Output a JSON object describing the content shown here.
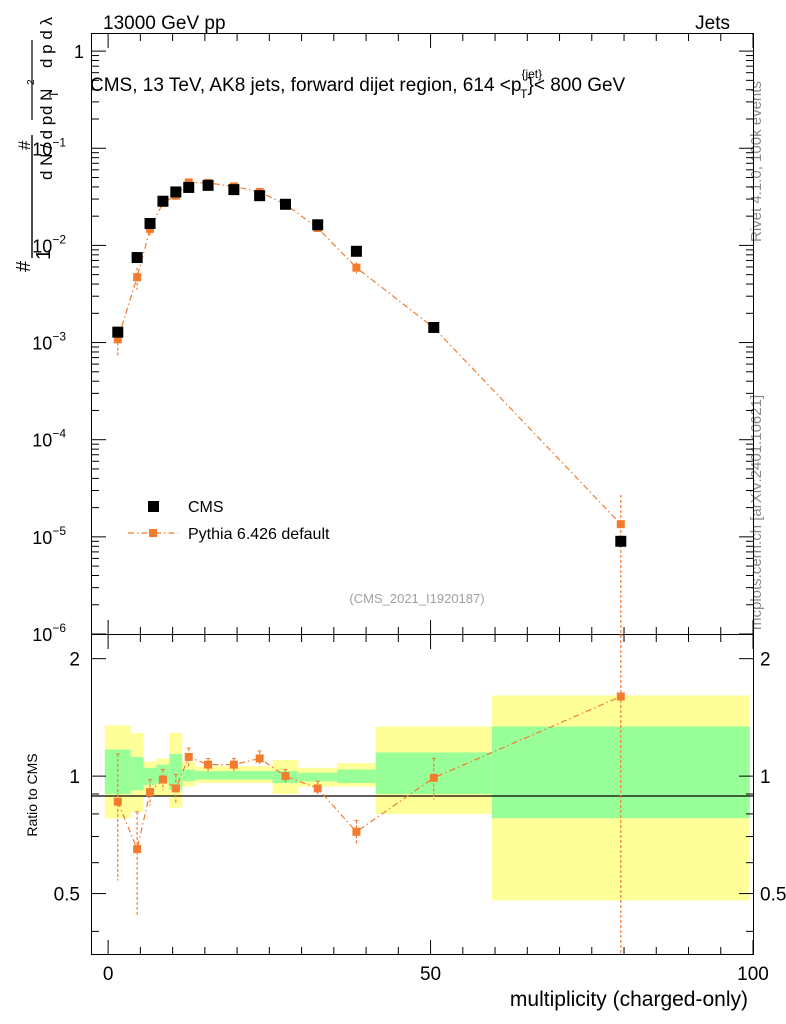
{
  "header": {
    "left": "13000 GeV pp",
    "right": "Jets"
  },
  "side_labels": {
    "rivet": "Rivet 4.1.0,  100k events",
    "mcplots": "mcplots.cern.ch [arXiv:2401.10621]"
  },
  "chart_data": [
    {
      "type": "scatter",
      "panel": "main",
      "title": "CMS, 13 TeV, AK8 jets, forward dijet region, 614 <p_T^{jet}< 800 GeV",
      "ylabel": "1/(dN/dp_T) d^2N/(dp_T dλ)",
      "yscale": "log",
      "ylim": [
        1e-06,
        1.5
      ],
      "xlim": [
        -2.5,
        100
      ],
      "watermark": "(CMS_2021_I1920187)",
      "yticks": [
        "10^{-6}",
        "10^{-5}",
        "10^{-4}",
        "10^{-3}",
        "10^{-2}",
        "10^{-1}",
        "1"
      ],
      "legend": {
        "position": "bottom-left"
      },
      "series": [
        {
          "name": "CMS",
          "marker": "square",
          "color": "#000000",
          "x": [
            1.5,
            4.5,
            6.5,
            8.5,
            10.5,
            12.5,
            15.5,
            19.5,
            23.5,
            27.5,
            32.5,
            38.5,
            50.5,
            79.5
          ],
          "y": [
            0.00128,
            0.0075,
            0.0168,
            0.0285,
            0.0355,
            0.0395,
            0.0415,
            0.0375,
            0.0325,
            0.0265,
            0.0163,
            0.0087,
            0.00143,
            9e-06
          ]
        },
        {
          "name": "Pythia 6.426 default",
          "marker": "square-dashdot",
          "color": "#f37b2e",
          "x": [
            1.5,
            4.5,
            6.5,
            8.5,
            10.5,
            12.5,
            15.5,
            19.5,
            23.5,
            27.5,
            32.5,
            38.5,
            50.5,
            79.5
          ],
          "y": [
            0.00108,
            0.0047,
            0.0148,
            0.0275,
            0.0325,
            0.0445,
            0.044,
            0.0405,
            0.0355,
            0.0265,
            0.0151,
            0.0059,
            0.00142,
            1.35e-05
          ],
          "yerr_low": [
            0.00035,
            0.0012,
            0.0025,
            0.003,
            0.003,
            0.0035,
            0.003,
            0.0028,
            0.0025,
            0.0018,
            0.0012,
            0.0008,
            0.00015,
            1.35e-05
          ],
          "yerr_high": [
            0.00035,
            0.0012,
            0.0025,
            0.003,
            0.003,
            0.0035,
            0.003,
            0.0028,
            0.0025,
            0.0018,
            0.0012,
            0.0008,
            0.00015,
            1.35e-05
          ]
        }
      ]
    },
    {
      "type": "line",
      "panel": "ratio",
      "xlabel": "multiplicity (charged-only)",
      "ylabel": "Ratio to CMS",
      "ylim": [
        0.35,
        2.3
      ],
      "yticks": [
        0.5,
        1,
        2
      ],
      "xlim": [
        -2.5,
        100
      ],
      "xticks": [
        0,
        50,
        100
      ],
      "bins": {
        "edges": [
          -0.5,
          3.5,
          5.5,
          7.5,
          9.5,
          11.5,
          13.5,
          25.5,
          29.5,
          35.5,
          41.5,
          59.5,
          99.5
        ],
        "yellow_low": [
          0.78,
          0.81,
          0.89,
          0.89,
          0.83,
          0.94,
          0.96,
          0.9,
          0.94,
          0.94,
          0.8,
          0.48
        ],
        "yellow_high": [
          1.35,
          1.29,
          1.09,
          1.11,
          1.29,
          1.09,
          1.06,
          1.1,
          1.05,
          1.08,
          1.34,
          1.61
        ],
        "green_low": [
          0.9,
          0.92,
          0.95,
          0.96,
          0.92,
          0.97,
          0.98,
          0.96,
          0.97,
          0.96,
          0.9,
          0.78
        ],
        "green_high": [
          1.17,
          1.12,
          1.05,
          1.07,
          1.14,
          1.04,
          1.03,
          1.03,
          1.02,
          1.04,
          1.15,
          1.34
        ]
      },
      "series": [
        {
          "name": "Pythia 6.426 default",
          "color": "#f37b2e",
          "x": [
            1.5,
            4.5,
            6.5,
            8.5,
            10.5,
            12.5,
            15.5,
            19.5,
            23.5,
            27.5,
            32.5,
            38.5,
            50.5,
            79.5
          ],
          "y": [
            0.86,
            0.65,
            0.91,
            0.98,
            0.93,
            1.12,
            1.07,
            1.07,
            1.11,
            1.0,
            0.93,
            0.72,
            0.99,
            1.6
          ],
          "yerr_low": [
            0.32,
            0.21,
            0.07,
            0.06,
            0.08,
            0.06,
            0.04,
            0.04,
            0.05,
            0.04,
            0.04,
            0.05,
            0.12,
            1.6
          ],
          "yerr_high": [
            0.28,
            0.16,
            0.07,
            0.06,
            0.08,
            0.06,
            0.04,
            0.04,
            0.05,
            0.04,
            0.04,
            0.05,
            0.12,
            1.6
          ]
        }
      ]
    }
  ]
}
